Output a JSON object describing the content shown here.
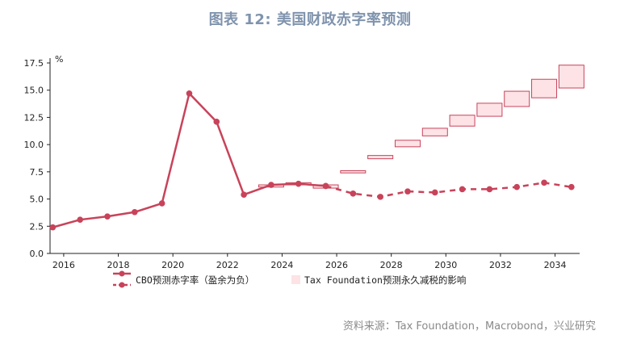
{
  "title": "图表 12: 美国财政赤字率预测",
  "source": "资料来源：Tax Foundation，Macrobond，兴业研究",
  "chart_data": {
    "type": "line",
    "ylabel": "%",
    "ylim": [
      0,
      17.5
    ],
    "yticks": [
      "0.0",
      "2.5",
      "5.0",
      "7.5",
      "10.0",
      "12.5",
      "15.0",
      "17.5"
    ],
    "xlim": [
      2015.5,
      2034.9
    ],
    "xticks": [
      "2016",
      "2018",
      "2020",
      "2022",
      "2024",
      "2026",
      "2028",
      "2030",
      "2032",
      "2034"
    ],
    "colors": {
      "line": "#c8435a",
      "box_fill": "#fde3e6",
      "box_stroke": "#c8435a"
    },
    "series": [
      {
        "name": "CBO预测赤字率（盈余为负）",
        "style": "line",
        "points": [
          [
            2015.6,
            2.4
          ],
          [
            2016.6,
            3.1
          ],
          [
            2017.6,
            3.4
          ],
          [
            2018.6,
            3.8
          ],
          [
            2019.6,
            4.6
          ],
          [
            2020.6,
            14.7
          ],
          [
            2021.6,
            12.1
          ],
          [
            2022.6,
            5.4
          ],
          [
            2023.6,
            6.3
          ],
          [
            2024.6,
            6.4
          ],
          [
            2025.6,
            6.2
          ]
        ]
      },
      {
        "name": "CBO预测赤字率（盈余为负）",
        "style": "dashed",
        "points": [
          [
            2025.6,
            6.2
          ],
          [
            2026.6,
            5.5
          ],
          [
            2027.6,
            5.2
          ],
          [
            2028.6,
            5.7
          ],
          [
            2029.6,
            5.6
          ],
          [
            2030.6,
            5.9
          ],
          [
            2031.6,
            5.9
          ],
          [
            2032.6,
            6.1
          ],
          [
            2033.6,
            6.5
          ],
          [
            2034.6,
            6.1
          ]
        ]
      },
      {
        "name": "Tax Foundation预测永久减税的影响",
        "style": "box",
        "boxes": [
          {
            "x": 2023.6,
            "low": 6.1,
            "high": 6.3
          },
          {
            "x": 2024.6,
            "low": 6.3,
            "high": 6.5
          },
          {
            "x": 2025.6,
            "low": 6.0,
            "high": 6.3
          },
          {
            "x": 2026.6,
            "low": 7.4,
            "high": 7.6
          },
          {
            "x": 2027.6,
            "low": 8.7,
            "high": 9.0
          },
          {
            "x": 2028.6,
            "low": 9.8,
            "high": 10.4
          },
          {
            "x": 2029.6,
            "low": 10.8,
            "high": 11.5
          },
          {
            "x": 2030.6,
            "low": 11.7,
            "high": 12.7
          },
          {
            "x": 2031.6,
            "low": 12.6,
            "high": 13.8
          },
          {
            "x": 2032.6,
            "low": 13.5,
            "high": 14.9
          },
          {
            "x": 2033.6,
            "low": 14.3,
            "high": 16.0
          },
          {
            "x": 2034.6,
            "low": 15.2,
            "high": 17.3
          }
        ]
      }
    ],
    "legend": {
      "placement": "bottom",
      "items": [
        {
          "label": "CBO预测赤字率（盈余为负）",
          "marker": "line"
        },
        {
          "label": "Tax Foundation预测永久减税的影响",
          "marker": "box"
        }
      ]
    }
  }
}
